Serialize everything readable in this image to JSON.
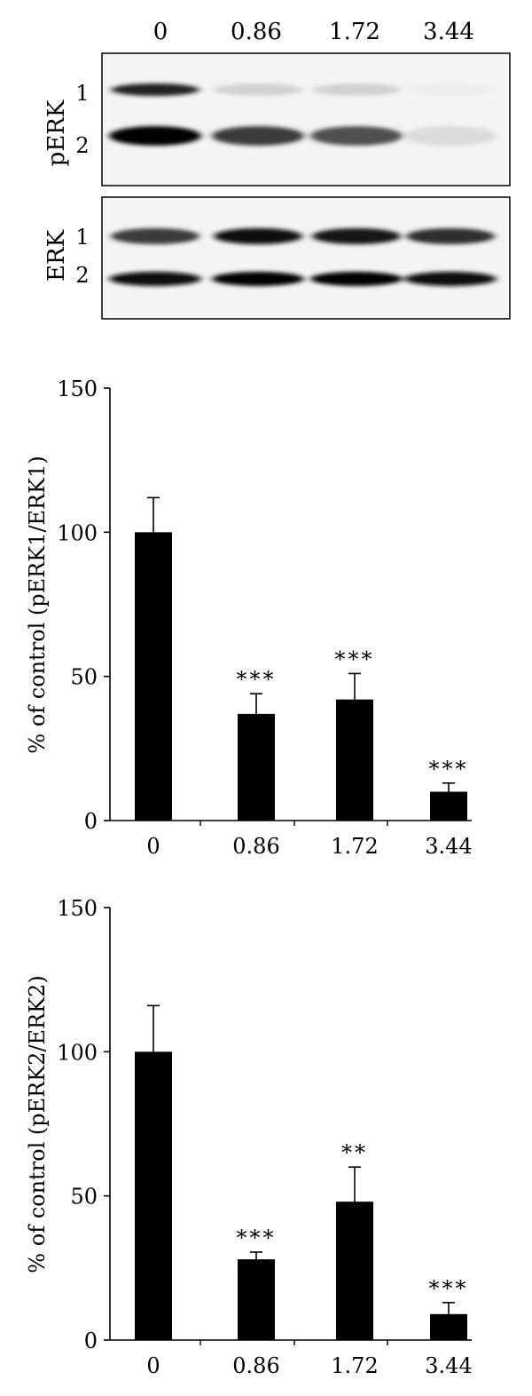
{
  "blot": {
    "lane_labels": [
      "0",
      "0.86",
      "1.72",
      "3.44"
    ],
    "panels": [
      {
        "label": "pERK",
        "band_labels": [
          "1",
          "2"
        ],
        "band1_intensity": [
          0.85,
          0.25,
          0.25,
          0.05
        ],
        "band2_intensity": [
          1.0,
          0.75,
          0.7,
          0.2
        ]
      },
      {
        "label": "ERK",
        "band_labels": [
          "1",
          "2"
        ],
        "band1_intensity": [
          0.75,
          0.95,
          0.9,
          0.8
        ],
        "band2_intensity": [
          0.95,
          1.0,
          1.0,
          0.95
        ]
      }
    ]
  },
  "chart_data": [
    {
      "type": "bar",
      "categories": [
        "0",
        "0.86",
        "1.72",
        "3.44"
      ],
      "values": [
        100,
        37,
        42,
        10
      ],
      "errors": [
        12,
        7,
        9,
        3
      ],
      "annotations": [
        "",
        "***",
        "***",
        "***"
      ],
      "ylabel": "% of control (pERK1/ERK1)",
      "ylim": [
        0,
        150
      ],
      "yticks": [
        "0",
        "50",
        "100",
        "150"
      ],
      "bar_color": "#000000"
    },
    {
      "type": "bar",
      "categories": [
        "0",
        "0.86",
        "1.72",
        "3.44"
      ],
      "values": [
        100,
        28,
        48,
        9
      ],
      "errors": [
        16,
        2.5,
        12,
        4
      ],
      "annotations": [
        "",
        "***",
        "**",
        "***"
      ],
      "ylabel": "% of control (pERK2/ERK2)",
      "ylim": [
        0,
        150
      ],
      "yticks": [
        "0",
        "50",
        "100",
        "150"
      ],
      "bar_color": "#000000"
    }
  ]
}
